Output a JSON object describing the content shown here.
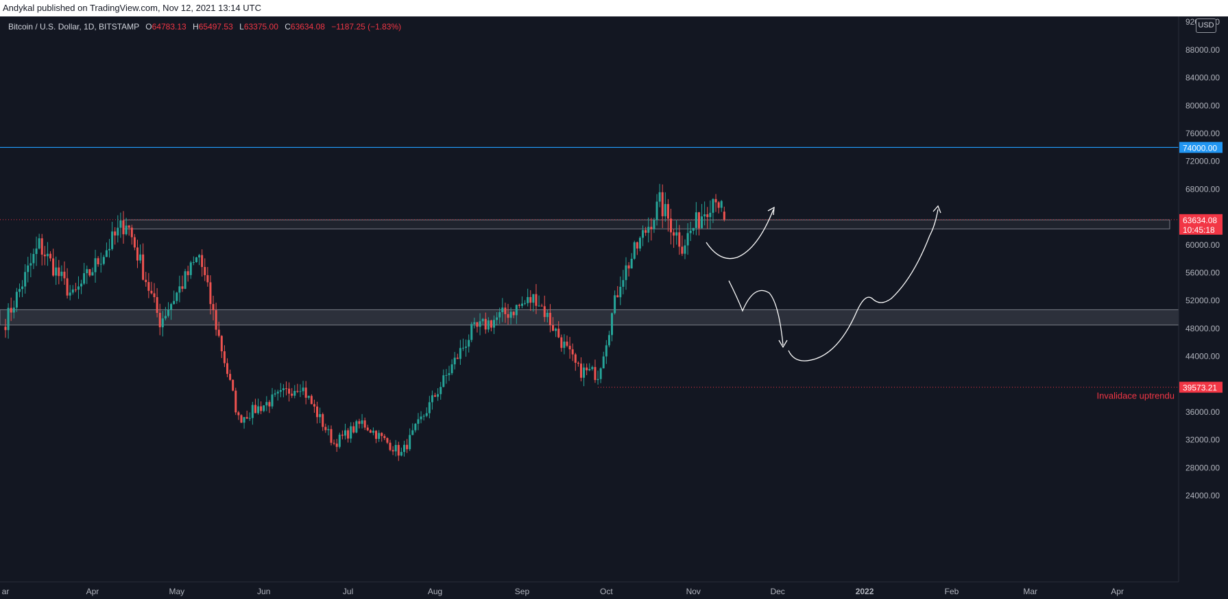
{
  "publish_info": "Andykal published on TradingView.com, Nov 12, 2021 13:14 UTC",
  "legend": {
    "symbol": "Bitcoin / U.S. Dollar, 1D, BITSTAMP",
    "open_label": "O",
    "open": "64783.13",
    "high_label": "H",
    "high": "65497.53",
    "low_label": "L",
    "low": "63375.00",
    "close_label": "C",
    "close": "63634.08",
    "change": "−1187.25 (−1.83%)"
  },
  "currency": "USD",
  "chart_data": {
    "type": "candlestick",
    "x_axis_labels": [
      "ar",
      "Apr",
      "May",
      "Jun",
      "Jul",
      "Aug",
      "Sep",
      "Oct",
      "Nov",
      "Dec",
      "2022",
      "Feb",
      "Mar",
      "Apr"
    ],
    "y_axis_labels": [
      "92000.00",
      "88000.00",
      "84000.00",
      "80000.00",
      "76000.00",
      "72000.00",
      "68000.00",
      "60000.00",
      "56000.00",
      "52000.00",
      "48000.00",
      "44000.00",
      "36000.00",
      "32000.00",
      "28000.00",
      "24000.00"
    ],
    "ylim": [
      20000,
      92000
    ],
    "horizontal_line": {
      "value": 74000,
      "label": "74000.00",
      "color": "#2196f3"
    },
    "last_price": {
      "value": 63634.08,
      "label": "63634.08",
      "countdown": "10:45:18",
      "color": "#f23645"
    },
    "invalidation": {
      "value": 39573.21,
      "label": "39573.21",
      "text": "Invalidace uptrendu",
      "color": "#f23645"
    },
    "zones": [
      {
        "low": 62300,
        "high": 63600
      },
      {
        "low": 48500,
        "high": 50700
      }
    ],
    "key_points": [
      {
        "date": "2021-03-01",
        "price": 49000
      },
      {
        "date": "2021-03-13",
        "price": 60000
      },
      {
        "date": "2021-03-25",
        "price": 52500
      },
      {
        "date": "2021-04-13",
        "price": 63500
      },
      {
        "date": "2021-04-25",
        "price": 49000
      },
      {
        "date": "2021-05-09",
        "price": 58500
      },
      {
        "date": "2021-05-23",
        "price": 35000
      },
      {
        "date": "2021-06-14",
        "price": 40000
      },
      {
        "date": "2021-06-26",
        "price": 31500
      },
      {
        "date": "2021-07-06",
        "price": 34500
      },
      {
        "date": "2021-07-20",
        "price": 30000
      },
      {
        "date": "2021-08-14",
        "price": 47500
      },
      {
        "date": "2021-09-06",
        "price": 52500
      },
      {
        "date": "2021-09-21",
        "price": 42000
      },
      {
        "date": "2021-09-28",
        "price": 41500
      },
      {
        "date": "2021-10-06",
        "price": 55000
      },
      {
        "date": "2021-10-20",
        "price": 66000
      },
      {
        "date": "2021-10-28",
        "price": 60000
      },
      {
        "date": "2021-11-09",
        "price": 67500
      },
      {
        "date": "2021-11-12",
        "price": 63634
      }
    ]
  }
}
